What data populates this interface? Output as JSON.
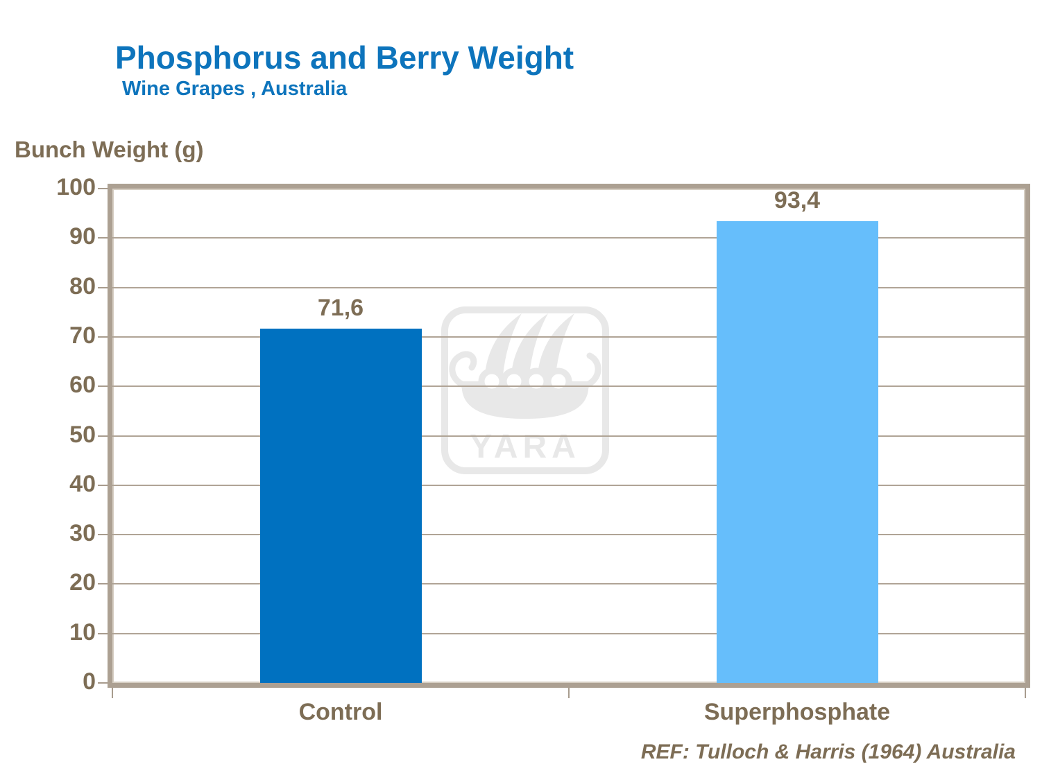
{
  "title": "Phosphorus and Berry Weight",
  "subtitle": "Wine Grapes , Australia",
  "y_axis_title": "Bunch Weight (g)",
  "reference": "REF: Tulloch & Harris (1964) Australia",
  "watermark_text": "YARA",
  "colors": {
    "title_blue": "#0d74bc",
    "bar_control": "#0071c0",
    "bar_superphosphate": "#66befb",
    "text_brown": "#7d6d55",
    "axis_tan": "#aca092",
    "gridline_tan": "#b0a496",
    "watermark_gray": "#e8e8e8"
  },
  "chart_data": {
    "type": "bar",
    "title": "Phosphorus and Berry Weight",
    "subtitle": "Wine Grapes , Australia",
    "ylabel": "Bunch Weight (g)",
    "xlabel": "",
    "categories": [
      "Control",
      "Superphosphate"
    ],
    "values": [
      71.6,
      93.4
    ],
    "value_labels": [
      "71,6",
      "93,4"
    ],
    "bar_colors": [
      "#0071c0",
      "#66befb"
    ],
    "ylim": [
      0,
      100
    ],
    "yticks": [
      0,
      10,
      20,
      30,
      40,
      50,
      60,
      70,
      80,
      90,
      100
    ],
    "grid": true,
    "legend_position": "none"
  }
}
